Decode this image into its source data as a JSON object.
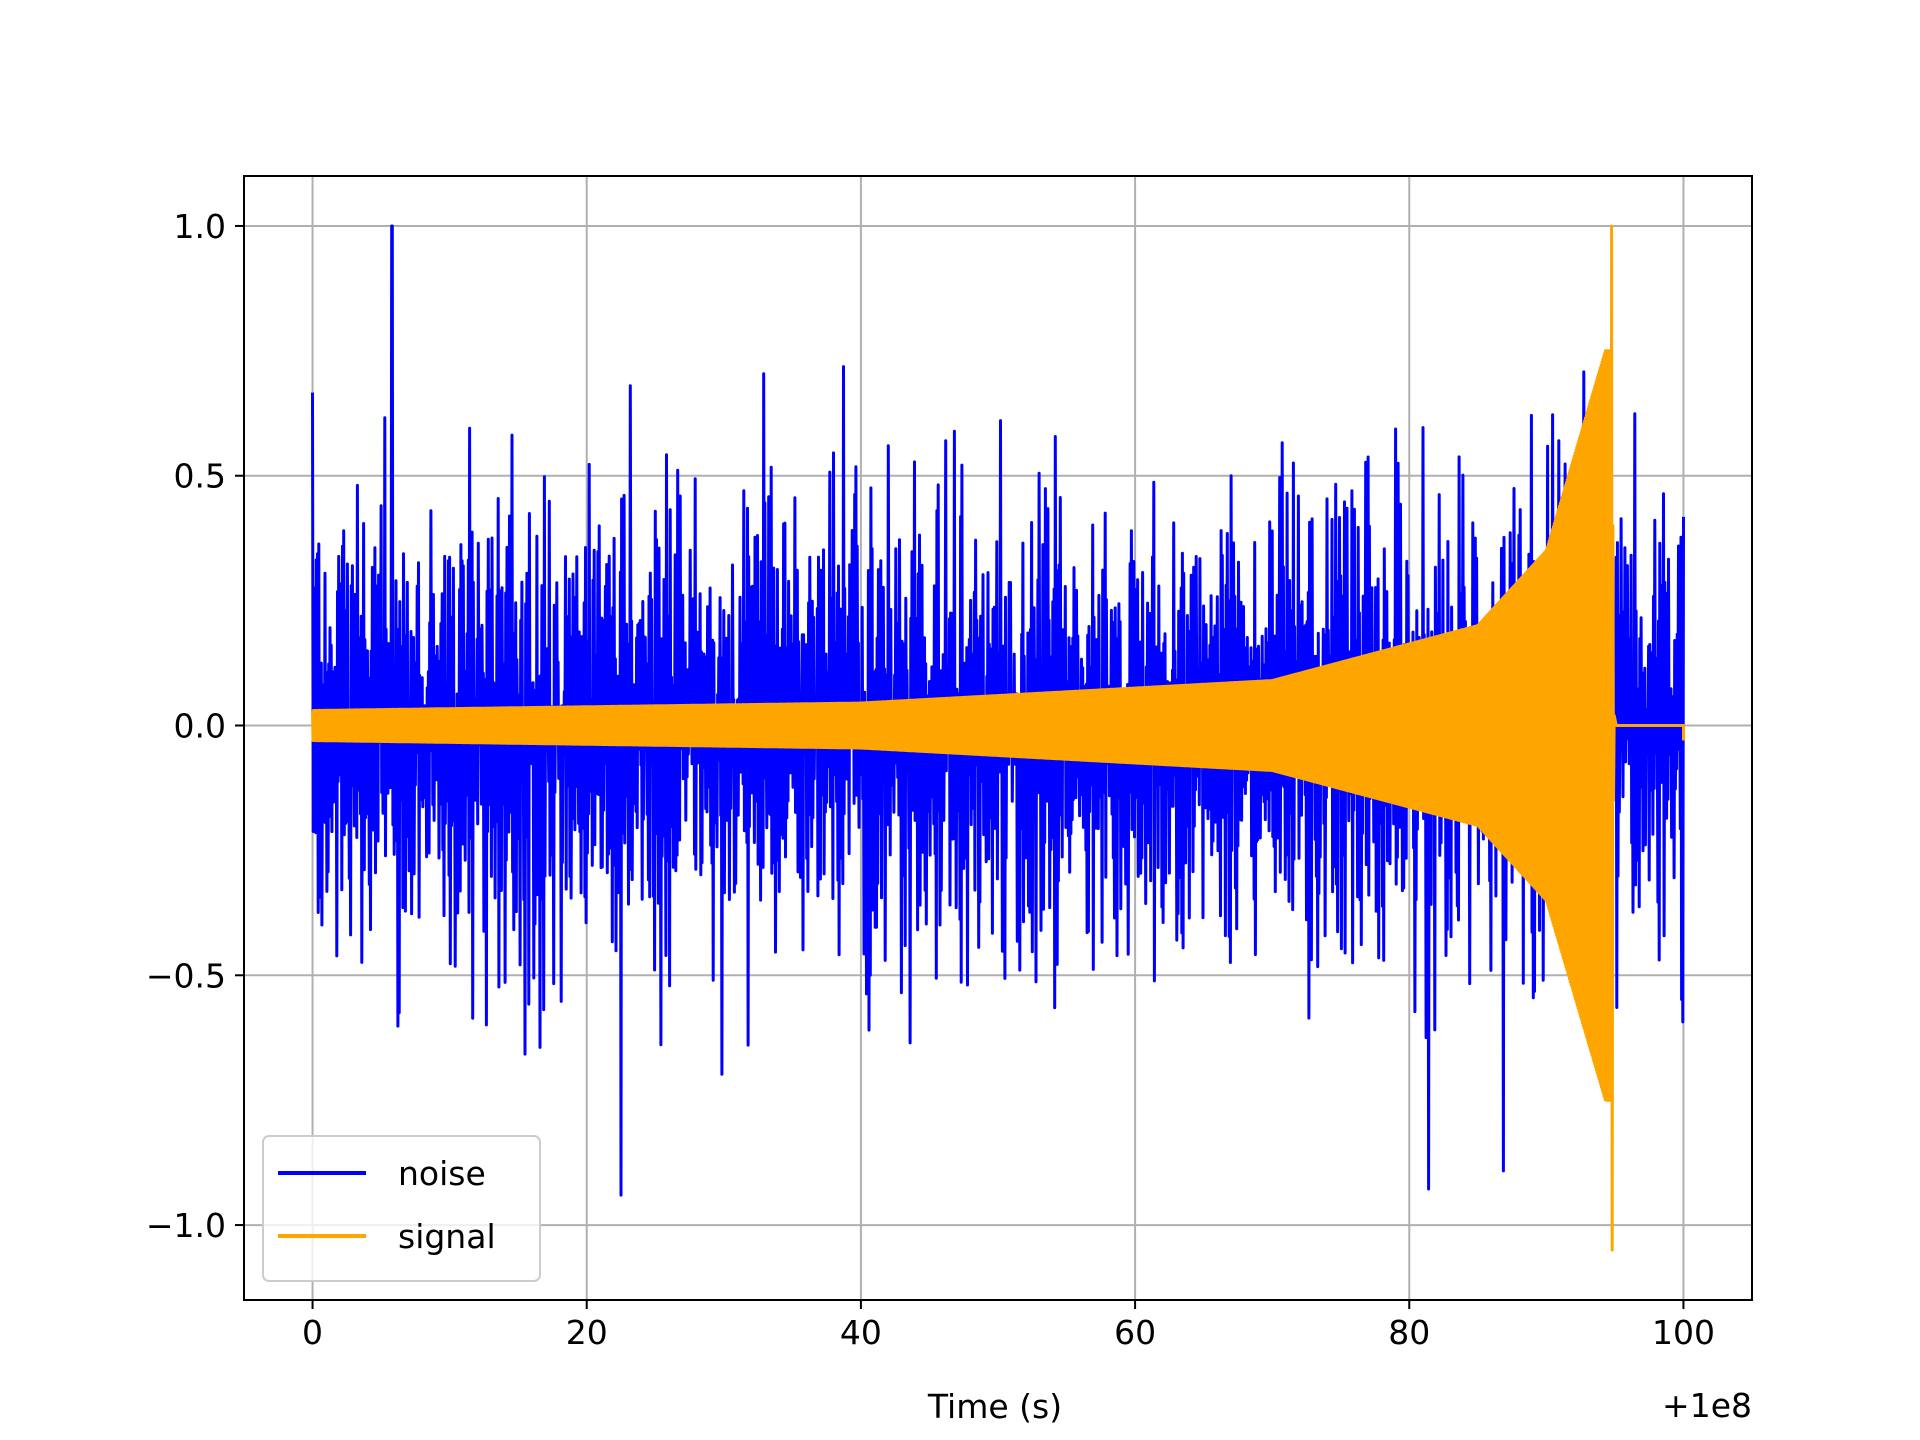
{
  "chart_data": {
    "type": "line",
    "title": "",
    "xlabel": "Time (s)",
    "ylabel": "",
    "x_offset_label": "+1e8",
    "xlim": [
      -5,
      105
    ],
    "ylim": [
      -1.15,
      1.1
    ],
    "xticks": [
      0,
      20,
      40,
      60,
      80,
      100
    ],
    "xtick_labels": [
      "0",
      "20",
      "40",
      "60",
      "80",
      "100"
    ],
    "yticks": [
      -1.0,
      -0.5,
      0.0,
      0.5,
      1.0
    ],
    "ytick_labels": [
      "−1.0",
      "−0.5",
      "0.0",
      "0.5",
      "1.0"
    ],
    "grid": true,
    "legend_position": "lower-left",
    "series": [
      {
        "name": "noise",
        "color": "#0000ff",
        "x_range": [
          0,
          100
        ],
        "typical_amplitude": 0.6,
        "peak_max": 1.0,
        "peak_max_x": 5.8,
        "peak_min": -0.94,
        "peak_min_x": 22.5
      },
      {
        "name": "signal",
        "color": "#ffa500",
        "x_range": [
          0,
          100
        ],
        "description_envelope": [
          {
            "x": 0,
            "amplitude": 0.03
          },
          {
            "x": 40,
            "amplitude": 0.045
          },
          {
            "x": 70,
            "amplitude": 0.09
          },
          {
            "x": 85,
            "amplitude": 0.2
          },
          {
            "x": 90,
            "amplitude": 0.35
          },
          {
            "x": 94.3,
            "amplitude": 0.75
          }
        ],
        "merger_x": 94.8,
        "peak_max": 1.0,
        "peak_min": -1.05,
        "post_merger_value": 0.0
      }
    ]
  }
}
